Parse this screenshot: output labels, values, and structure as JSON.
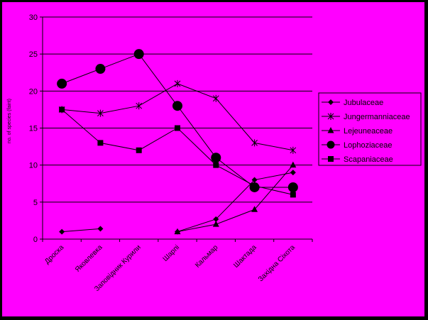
{
  "colors": {
    "background": "#ff00ff",
    "frame": "#000000",
    "lines": "#000000"
  },
  "chart_data": {
    "type": "line",
    "title": "",
    "xlabel": "",
    "ylabel": "no. of species (faint)",
    "ylim": [
      0,
      30
    ],
    "yticks": [
      0,
      5,
      10,
      15,
      20,
      25,
      30
    ],
    "grid": "horizontal",
    "legend_position": "right",
    "categories": [
      "Дроска",
      "Яковлевка",
      "Заповідник Курили",
      "Шарпі",
      "Кальмар",
      "Шактада",
      "Західна Сіхота"
    ],
    "series": [
      {
        "name": "Jubulaceae",
        "marker": "diamond",
        "values": [
          1,
          1.4,
          null,
          1,
          2.7,
          8,
          9
        ]
      },
      {
        "name": "Jungermanniaceae",
        "marker": "star",
        "values": [
          17.5,
          17,
          18,
          21,
          19,
          13,
          12
        ]
      },
      {
        "name": "Lejeuneaceae",
        "marker": "triangle",
        "values": [
          null,
          null,
          null,
          1,
          2,
          4,
          10
        ]
      },
      {
        "name": "Lophoziaceae",
        "marker": "circle",
        "values": [
          21,
          23,
          25,
          18,
          11,
          7,
          7
        ]
      },
      {
        "name": "Scapaniaceae",
        "marker": "square",
        "values": [
          17.5,
          13,
          12,
          15,
          10,
          7.2,
          6
        ]
      }
    ]
  }
}
